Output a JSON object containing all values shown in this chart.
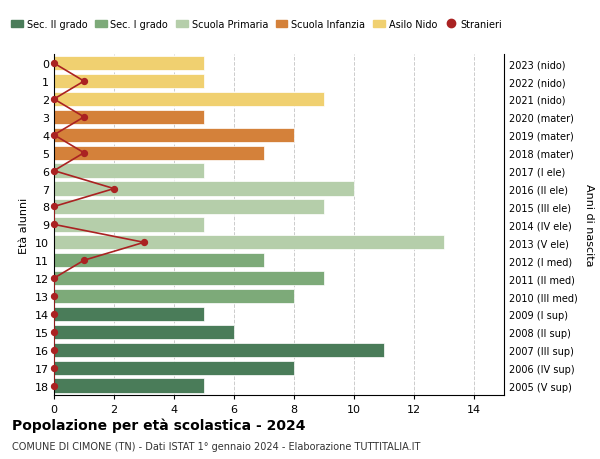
{
  "ages": [
    18,
    17,
    16,
    15,
    14,
    13,
    12,
    11,
    10,
    9,
    8,
    7,
    6,
    5,
    4,
    3,
    2,
    1,
    0
  ],
  "years": [
    "2005 (V sup)",
    "2006 (IV sup)",
    "2007 (III sup)",
    "2008 (II sup)",
    "2009 (I sup)",
    "2010 (III med)",
    "2011 (II med)",
    "2012 (I med)",
    "2013 (V ele)",
    "2014 (IV ele)",
    "2015 (III ele)",
    "2016 (II ele)",
    "2017 (I ele)",
    "2018 (mater)",
    "2019 (mater)",
    "2020 (mater)",
    "2021 (nido)",
    "2022 (nido)",
    "2023 (nido)"
  ],
  "values": [
    5,
    8,
    11,
    6,
    5,
    8,
    9,
    7,
    13,
    5,
    9,
    10,
    5,
    7,
    8,
    5,
    9,
    5,
    5
  ],
  "stranieri": [
    0,
    0,
    0,
    0,
    0,
    0,
    0,
    1,
    3,
    0,
    0,
    2,
    0,
    1,
    0,
    1,
    0,
    1,
    0
  ],
  "colors": {
    "sec2": "#4a7c59",
    "sec1": "#7daa79",
    "primaria": "#b5ceaa",
    "infanzia": "#d4813a",
    "nido": "#f0d070",
    "stranieri": "#aa2222"
  },
  "bar_colors": [
    "sec2",
    "sec2",
    "sec2",
    "sec2",
    "sec2",
    "sec1",
    "sec1",
    "sec1",
    "primaria",
    "primaria",
    "primaria",
    "primaria",
    "primaria",
    "infanzia",
    "infanzia",
    "infanzia",
    "nido",
    "nido",
    "nido"
  ],
  "title": "Popolazione per età scolastica - 2024",
  "subtitle": "COMUNE DI CIMONE (TN) - Dati ISTAT 1° gennaio 2024 - Elaborazione TUTTITALIA.IT",
  "ylabel": "Età alunni",
  "ylabel2": "Anni di nascita",
  "xlim": [
    0,
    15
  ],
  "xticks": [
    0,
    2,
    4,
    6,
    8,
    10,
    12,
    14
  ],
  "legend_labels": [
    "Sec. II grado",
    "Sec. I grado",
    "Scuola Primaria",
    "Scuola Infanzia",
    "Asilo Nido",
    "Stranieri"
  ],
  "legend_colors": [
    "#4a7c59",
    "#7daa79",
    "#b5ceaa",
    "#d4813a",
    "#f0d070",
    "#aa2222"
  ],
  "bg_color": "#ffffff",
  "grid_color": "#cccccc"
}
